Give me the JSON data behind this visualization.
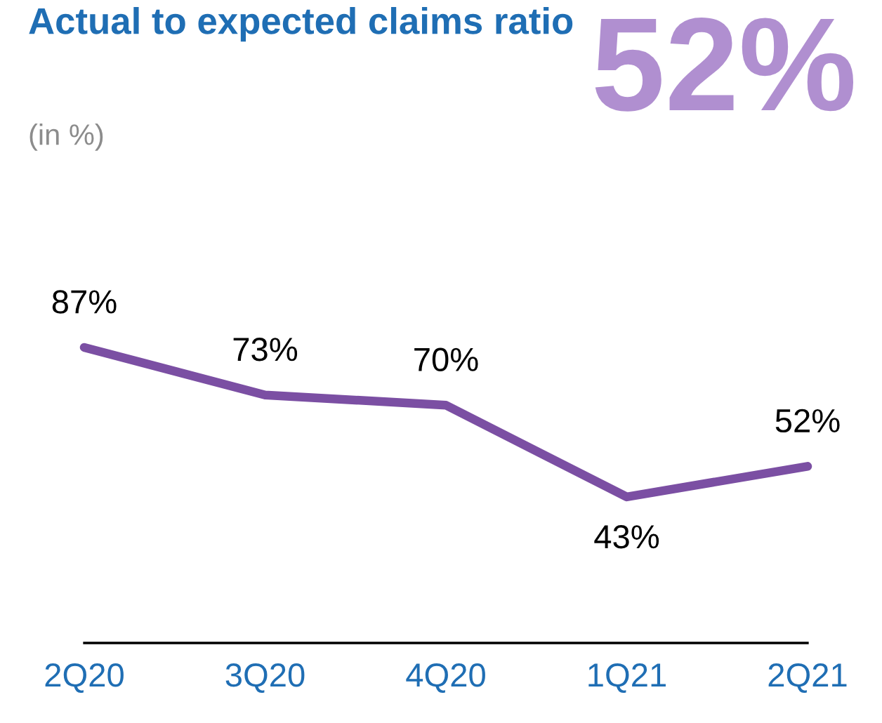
{
  "chart_data": {
    "type": "line",
    "title": "Actual to expected claims ratio",
    "subtitle": "(in %)",
    "annotations": [
      "52%"
    ],
    "categories": [
      "2Q20",
      "3Q20",
      "4Q20",
      "1Q21",
      "2Q21"
    ],
    "series": [
      {
        "color": "#7b4fa3",
        "values": [
          87,
          73,
          70,
          43,
          52
        ],
        "value_labels": [
          "87%",
          "73%",
          "70%",
          "43%",
          "52%"
        ]
      }
    ],
    "grid": false,
    "legend": false,
    "marker": "none",
    "line_style": "solid"
  }
}
